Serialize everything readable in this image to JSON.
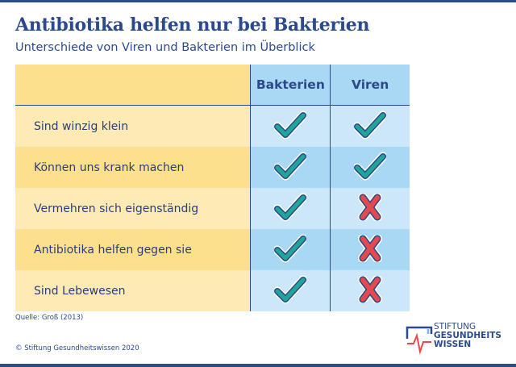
{
  "header": {
    "title": "Antibiotika helfen nur bei Bakterien",
    "subtitle": "Unterschiede von Viren und Bakterien im Überblick"
  },
  "table": {
    "columns": [
      "",
      "Bakterien",
      "Viren"
    ],
    "rows": [
      {
        "label": "Sind winzig klein",
        "bakterien": "check",
        "viren": "check"
      },
      {
        "label": "Können uns krank machen",
        "bakterien": "check",
        "viren": "check"
      },
      {
        "label": "Vermehren sich eigenständig",
        "bakterien": "check",
        "viren": "cross"
      },
      {
        "label": "Antibiotika helfen gegen sie",
        "bakterien": "check",
        "viren": "cross"
      },
      {
        "label": "Sind Lebewesen",
        "bakterien": "check",
        "viren": "cross"
      }
    ]
  },
  "footer": {
    "source": "Quelle: Groß (2013)",
    "copyright": "© Stiftung Gesundheitswissen 2020",
    "logo_lines": [
      "STIFTUNG",
      "GESUNDHEITS",
      "WISSEN"
    ]
  },
  "colors": {
    "brand_blue": "#2b4a8c",
    "check_teal": "#1fa59a",
    "cross_red": "#e5484d",
    "yellow_dark": "#fde08e",
    "yellow_light": "#feeab5",
    "blue_dark": "#a9d8f4",
    "blue_light": "#cbe7f9"
  }
}
